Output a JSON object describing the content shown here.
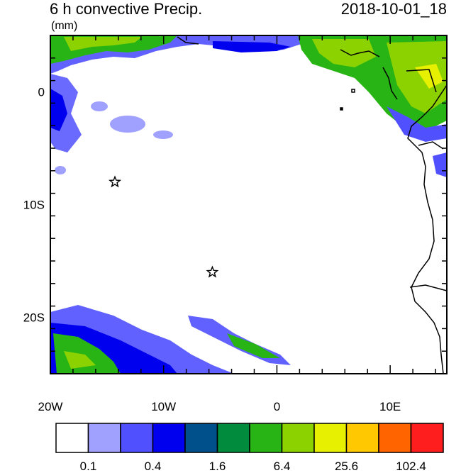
{
  "header": {
    "title": "6 h convective Precip.",
    "units": "(mm)",
    "valid_time": "2018-10-01_18"
  },
  "axes": {
    "lon_ticks": [
      {
        "value": -20,
        "label": "20W"
      },
      {
        "value": -10,
        "label": "10W"
      },
      {
        "value": 0,
        "label": "0"
      },
      {
        "value": 10,
        "label": "10E"
      }
    ],
    "lat_ticks": [
      {
        "value": 0,
        "label": "0"
      },
      {
        "value": -10,
        "label": "10S"
      },
      {
        "value": -20,
        "label": "20S"
      }
    ],
    "lon_range": [
      -20,
      15
    ],
    "lat_range": [
      -25,
      5
    ]
  },
  "colorbar": {
    "colors": [
      "#ffffff",
      "#a0a0ff",
      "#5050ff",
      "#0000ee",
      "#00508c",
      "#008c3c",
      "#28b414",
      "#8cd200",
      "#e6f000",
      "#ffc800",
      "#ff6400",
      "#ff1e1e"
    ],
    "labels": [
      {
        "after_box": 1,
        "text": "0.1"
      },
      {
        "after_box": 3,
        "text": "0.4"
      },
      {
        "after_box": 5,
        "text": "1.6"
      },
      {
        "after_box": 7,
        "text": "6.4"
      },
      {
        "after_box": 9,
        "text": "25.6"
      },
      {
        "after_box": 11,
        "text": "102.4"
      }
    ]
  },
  "markers": [
    {
      "name": "star-marker-1",
      "lon": -14.3,
      "lat": -8.0
    },
    {
      "name": "star-marker-2",
      "lon": -5.7,
      "lat": -16.0
    }
  ]
}
